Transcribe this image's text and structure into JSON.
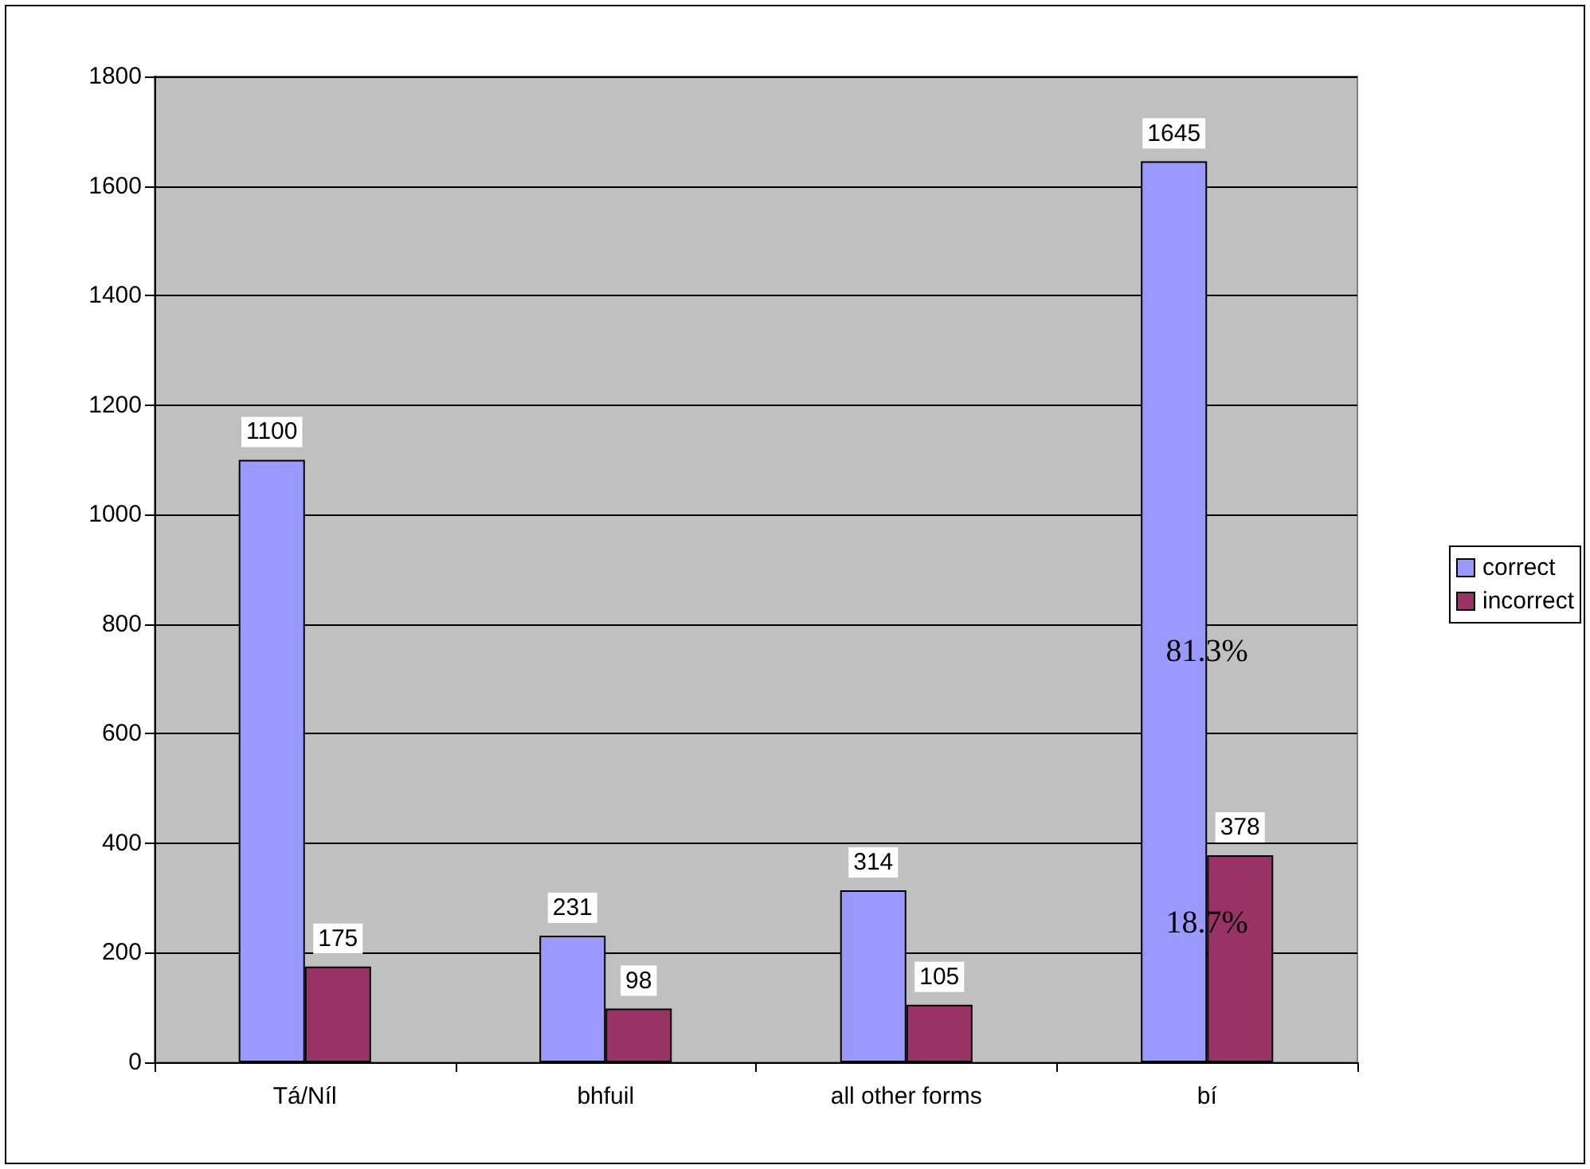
{
  "chart_data": {
    "type": "bar",
    "categories": [
      "Tá/Níl",
      "bhfuil",
      "all other forms",
      "bí"
    ],
    "series": [
      {
        "name": "correct",
        "color": "#9999ff",
        "values": [
          1100,
          231,
          314,
          1645
        ]
      },
      {
        "name": "incorrect",
        "color": "#993366",
        "values": [
          175,
          98,
          105,
          378
        ]
      }
    ],
    "ylim": [
      0,
      1800
    ],
    "yticks": [
      0,
      200,
      400,
      600,
      800,
      1000,
      1200,
      1400,
      1600,
      1800
    ],
    "grid": "y",
    "legend": "right",
    "data_labels": true,
    "annotations": [
      {
        "text": "81.3%",
        "x": "bí",
        "y": 750
      },
      {
        "text": "18.7%",
        "x": "bí",
        "y": 255
      }
    ]
  }
}
